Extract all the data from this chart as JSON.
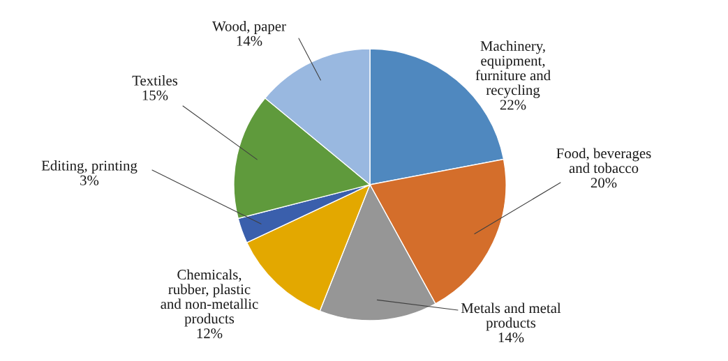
{
  "chart_data": {
    "type": "pie",
    "categories": [
      "Machinery,\nequipment,\nfurniture and\nrecycling",
      "Food, beverages\nand tobacco",
      "Metals and metal\nproducts",
      "Chemicals,\nrubber, plastic\nand non-metallic\nproducts",
      "Editing, printing",
      "Textiles",
      "Wood, paper"
    ],
    "values": [
      22,
      20,
      14,
      12,
      3,
      15,
      14
    ],
    "colors": [
      "#4f88bf",
      "#d46e2b",
      "#969696",
      "#e3a800",
      "#3a5fac",
      "#5f9a3c",
      "#99b8e0"
    ],
    "value_labels": [
      "22%",
      "20%",
      "14%",
      "12%",
      "3%",
      "15%",
      "14%"
    ]
  }
}
